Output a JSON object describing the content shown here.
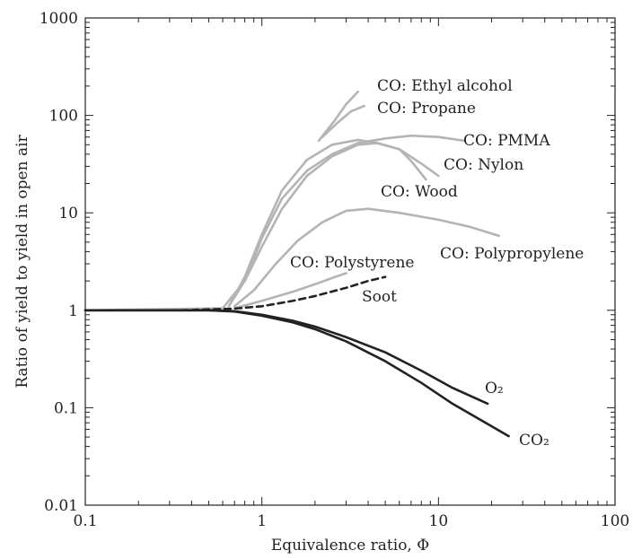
{
  "chart_data": {
    "type": "line",
    "title": "",
    "xlabel": "Equivalence ratio, Φ",
    "ylabel": "Ratio of yield to yield in open air",
    "xscale": "log",
    "yscale": "log",
    "xlim": [
      0.1,
      100
    ],
    "ylim": [
      0.01,
      1000
    ],
    "grid": false,
    "legend": "none (series labelled directly on plot)",
    "x_tick_labels": [
      "0.1",
      "1",
      "10",
      "100"
    ],
    "y_tick_labels": [
      "0.01",
      "0.1",
      "1",
      "10",
      "100",
      "1000"
    ],
    "colors": {
      "co_series": "#b4b4b4",
      "soot": "#222222",
      "gas_series": "#222222",
      "axis": "#222222"
    },
    "series": [
      {
        "name": "CO: Ethyl alcohol",
        "label": "CO: Ethyl alcohol",
        "color": "#b4b4b4",
        "dash": false,
        "points": [
          [
            2.1,
            55
          ],
          [
            2.6,
            90
          ],
          [
            3.0,
            130
          ],
          [
            3.5,
            175
          ]
        ]
      },
      {
        "name": "CO: Propane",
        "label": "CO: Propane",
        "color": "#b4b4b4",
        "dash": false,
        "points": [
          [
            2.2,
            60
          ],
          [
            2.7,
            85
          ],
          [
            3.2,
            110
          ],
          [
            3.8,
            125
          ]
        ]
      },
      {
        "name": "CO: PMMA",
        "label": "CO: PMMA",
        "color": "#b4b4b4",
        "dash": false,
        "points": [
          [
            0.1,
            1.0
          ],
          [
            0.6,
            1.05
          ],
          [
            0.8,
            2.0
          ],
          [
            1.0,
            5.5
          ],
          [
            1.3,
            14
          ],
          [
            1.8,
            27
          ],
          [
            2.5,
            40
          ],
          [
            3.5,
            52
          ],
          [
            5.0,
            58
          ],
          [
            7.0,
            62
          ],
          [
            10,
            60
          ],
          [
            14,
            55
          ]
        ]
      },
      {
        "name": "CO: Nylon",
        "label": "CO: Nylon",
        "color": "#b4b4b4",
        "dash": false,
        "points": [
          [
            0.65,
            1.1
          ],
          [
            0.8,
            2.2
          ],
          [
            1.0,
            6
          ],
          [
            1.3,
            17
          ],
          [
            1.8,
            35
          ],
          [
            2.5,
            50
          ],
          [
            3.5,
            56
          ],
          [
            4.5,
            52
          ],
          [
            6.0,
            45
          ],
          [
            8.0,
            32
          ],
          [
            10,
            24
          ]
        ]
      },
      {
        "name": "CO: Wood",
        "label": "CO: Wood",
        "color": "#b4b4b4",
        "dash": false,
        "points": [
          [
            0.65,
            1.1
          ],
          [
            0.8,
            2.0
          ],
          [
            1.0,
            4.5
          ],
          [
            1.3,
            11
          ],
          [
            1.8,
            24
          ],
          [
            2.5,
            38
          ],
          [
            3.5,
            50
          ],
          [
            4.5,
            52
          ],
          [
            6.0,
            45
          ],
          [
            7.0,
            34
          ],
          [
            8.5,
            22
          ]
        ]
      },
      {
        "name": "CO: Polypropylene",
        "label": "CO: Polypropylene",
        "color": "#b4b4b4",
        "dash": false,
        "points": [
          [
            0.7,
            1.1
          ],
          [
            0.9,
            1.6
          ],
          [
            1.2,
            3.0
          ],
          [
            1.6,
            5.2
          ],
          [
            2.2,
            8.0
          ],
          [
            3.0,
            10.5
          ],
          [
            4.0,
            11
          ],
          [
            6.0,
            10
          ],
          [
            10,
            8.5
          ],
          [
            15,
            7.2
          ],
          [
            22,
            5.8
          ]
        ]
      },
      {
        "name": "CO: Polystyrene",
        "label": "CO: Polystyrene",
        "color": "#b4b4b4",
        "dash": false,
        "points": [
          [
            0.7,
            1.05
          ],
          [
            1.0,
            1.25
          ],
          [
            1.5,
            1.55
          ],
          [
            2.0,
            1.85
          ],
          [
            2.6,
            2.2
          ],
          [
            3.0,
            2.4
          ]
        ]
      },
      {
        "name": "Soot",
        "label": "Soot",
        "color": "#222222",
        "dash": true,
        "points": [
          [
            0.35,
            1.0
          ],
          [
            0.7,
            1.04
          ],
          [
            1.0,
            1.1
          ],
          [
            1.5,
            1.25
          ],
          [
            2.0,
            1.4
          ],
          [
            3.0,
            1.7
          ],
          [
            4.0,
            2.0
          ],
          [
            5.0,
            2.2
          ]
        ]
      },
      {
        "name": "O2",
        "label": "O₂",
        "color": "#222222",
        "dash": false,
        "points": [
          [
            0.1,
            1.0
          ],
          [
            0.5,
            1.0
          ],
          [
            0.7,
            0.98
          ],
          [
            1.0,
            0.9
          ],
          [
            1.5,
            0.78
          ],
          [
            2.0,
            0.68
          ],
          [
            3.0,
            0.53
          ],
          [
            5.0,
            0.37
          ],
          [
            8.0,
            0.24
          ],
          [
            12,
            0.16
          ],
          [
            19,
            0.11
          ]
        ]
      },
      {
        "name": "CO2",
        "label": "CO₂",
        "color": "#222222",
        "dash": false,
        "points": [
          [
            0.1,
            1.0
          ],
          [
            0.5,
            1.0
          ],
          [
            0.7,
            0.97
          ],
          [
            1.0,
            0.88
          ],
          [
            1.5,
            0.75
          ],
          [
            2.0,
            0.64
          ],
          [
            3.0,
            0.48
          ],
          [
            5.0,
            0.3
          ],
          [
            8.0,
            0.18
          ],
          [
            12,
            0.11
          ],
          [
            18,
            0.072
          ],
          [
            25,
            0.051
          ]
        ]
      }
    ]
  }
}
